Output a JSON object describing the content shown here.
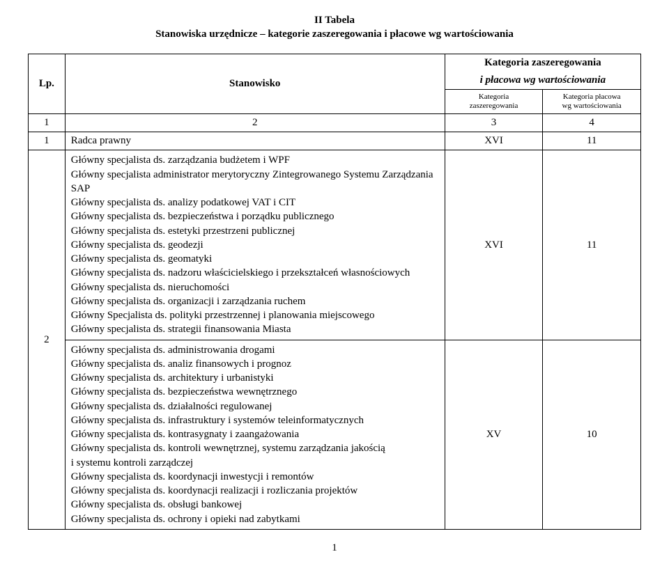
{
  "title": {
    "line1": "II Tabela",
    "line2": "Stanowiska urzędnicze – kategorie zaszeregowania i płacowe wg wartościowania"
  },
  "header": {
    "lp": "Lp.",
    "stanowisko": "Stanowisko",
    "kategoria_group": "Kategoria zaszeregowania",
    "kategoria_group2": "i płacowa wg wartościowania",
    "kz_sub1": "Kategoria",
    "kz_sub2": "zaszeregowania",
    "kp_sub1": "Kategoria płacowa",
    "kp_sub2": "wg wartościowania"
  },
  "numrow": {
    "c1": "1",
    "c2": "2",
    "c3": "3",
    "c4": "4"
  },
  "row1": {
    "lp": "1",
    "stan": "Radca prawny",
    "kz": "XVI",
    "kp": "11"
  },
  "row2": {
    "lp": "2",
    "groupA": {
      "items": [
        "Główny specjalista ds. zarządzania budżetem i WPF",
        "Główny specjalista administrator merytoryczny Zintegrowanego Systemu Zarządzania SAP",
        "Główny specjalista ds. analizy podatkowej VAT i CIT",
        "Główny specjalista ds. bezpieczeństwa i porządku publicznego",
        "Główny specjalista ds. estetyki przestrzeni publicznej",
        "Główny specjalista ds. geodezji",
        "Główny specjalista ds. geomatyki",
        "Główny specjalista ds. nadzoru właścicielskiego i przekształceń własnościowych",
        "Główny specjalista ds. nieruchomości",
        "Główny specjalista ds. organizacji i zarządzania ruchem",
        "Główny Specjalista ds. polityki przestrzennej i planowania miejscowego",
        "Główny specjalista ds. strategii finansowania Miasta"
      ],
      "kz": "XVI",
      "kp": "11"
    },
    "groupB": {
      "items": [
        "Główny specjalista ds. administrowania drogami",
        "Główny specjalista ds. analiz finansowych i prognoz",
        "Główny specjalista ds. architektury i urbanistyki",
        "Główny specjalista ds. bezpieczeństwa wewnętrznego",
        "Główny specjalista ds. działalności regulowanej",
        "Główny specjalista ds. infrastruktury i systemów teleinformatycznych",
        "Główny specjalista ds. kontrasygnaty i zaangażowania",
        "Główny specjalista ds. kontroli wewnętrznej, systemu zarządzania jakością",
        "i systemu kontroli zarządczej",
        "Główny specjalista ds. koordynacji inwestycji i remontów",
        "Główny specjalista ds. koordynacji realizacji i rozliczania projektów",
        "Główny specjalista ds. obsługi bankowej",
        "Główny specjalista ds. ochrony i opieki nad zabytkami"
      ],
      "kz": "XV",
      "kp": "10"
    }
  },
  "page_number": "1",
  "style": {
    "font_family": "Times New Roman",
    "base_font_size_pt": 11,
    "small_font_size_pt": 8,
    "text_color": "#000000",
    "background_color": "#ffffff",
    "border_color": "#000000",
    "column_widths_pct": {
      "lp": 6,
      "stanowisko": 62,
      "kz": 16,
      "kp": 16
    }
  }
}
